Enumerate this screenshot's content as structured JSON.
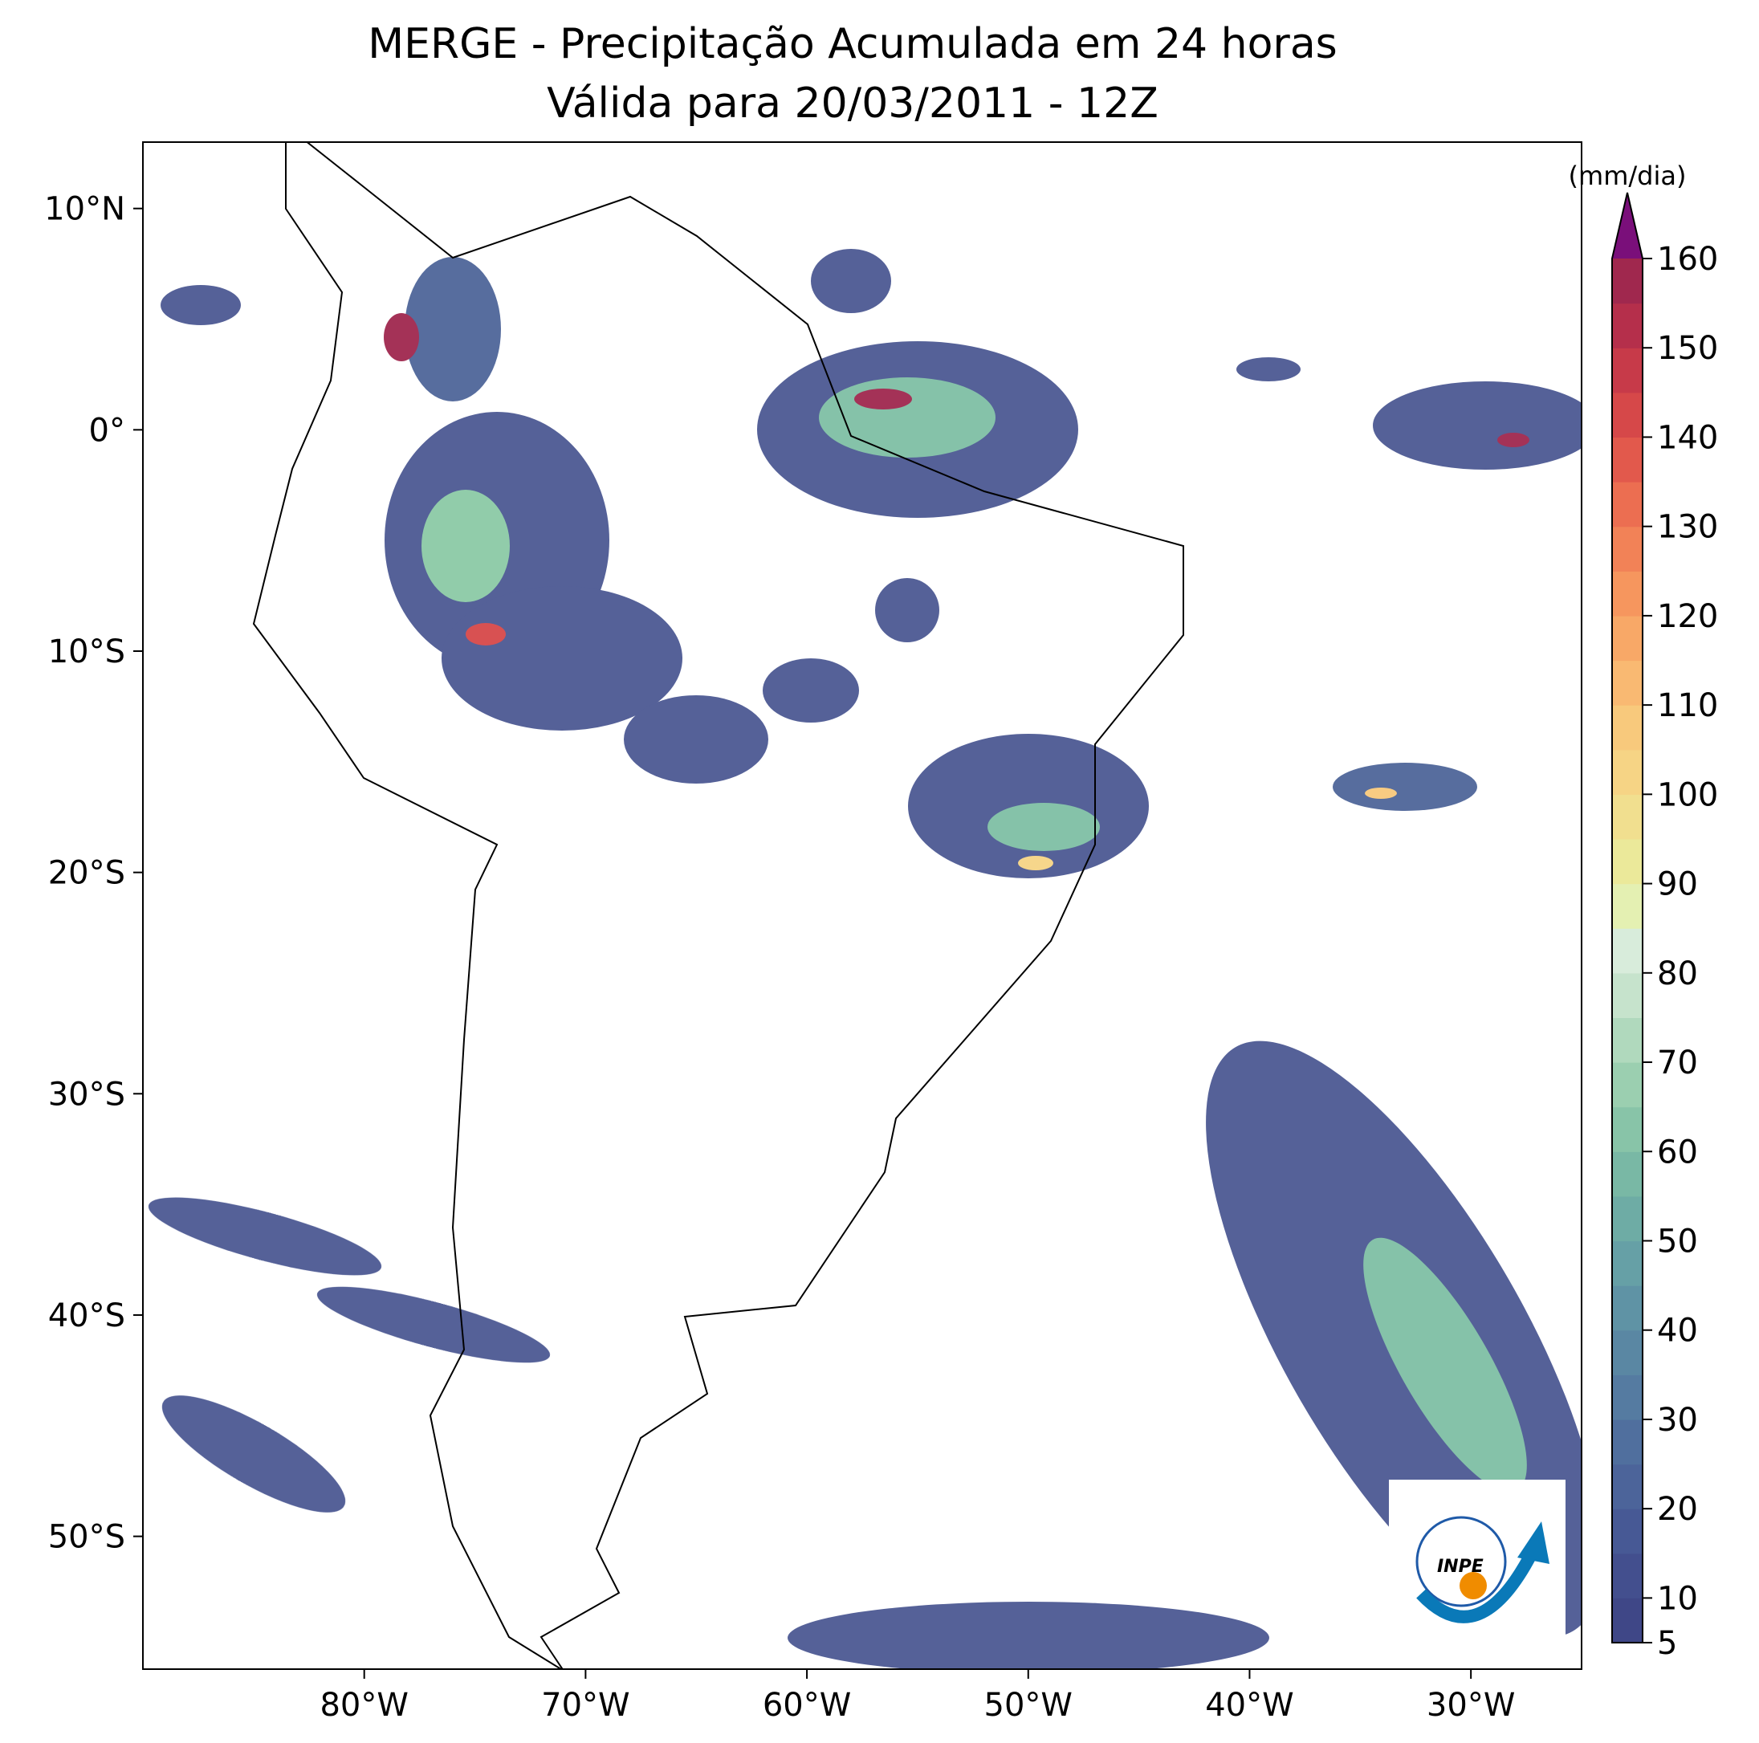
{
  "map": {
    "title": "MERGE - Precipitação Acumulada em 24 horas",
    "subtitle": "Válida para 20/03/2011 - 12Z",
    "xlim": [
      -90,
      -25
    ],
    "ylim": [
      -56,
      13
    ],
    "xticks": [
      {
        "value": -80,
        "label": "80°W"
      },
      {
        "value": -70,
        "label": "70°W"
      },
      {
        "value": -60,
        "label": "60°W"
      },
      {
        "value": -50,
        "label": "50°W"
      },
      {
        "value": -40,
        "label": "40°W"
      },
      {
        "value": -30,
        "label": "30°W"
      }
    ],
    "yticks": [
      {
        "value": 10,
        "label": "10°N"
      },
      {
        "value": 0,
        "label": "0°"
      },
      {
        "value": -10,
        "label": "10°S"
      },
      {
        "value": -20,
        "label": "20°S"
      },
      {
        "value": -30,
        "label": "30°S"
      },
      {
        "value": -40,
        "label": "40°S"
      },
      {
        "value": -50,
        "label": "50°S"
      }
    ],
    "colorbar": {
      "label": "(mm/dia)",
      "lim": [
        5,
        160
      ],
      "ticks": [
        5,
        10,
        20,
        30,
        40,
        50,
        60,
        70,
        80,
        90,
        100,
        110,
        120,
        130,
        140,
        150,
        160
      ],
      "colors": [
        "#3f4787",
        "#434f8e",
        "#475995",
        "#4c649a",
        "#506f9e",
        "#557ba1",
        "#5a87a3",
        "#5f93a5",
        "#66a0a6",
        "#6eaca5",
        "#79b8a5",
        "#88c4a8",
        "#9bcfb0",
        "#b0d9bd",
        "#c6e3cc",
        "#d8ecdb",
        "#e4f0b2",
        "#ebe99a",
        "#f1df8f",
        "#f6d485",
        "#f8c97c",
        "#f9b972",
        "#f8a867",
        "#f6965e",
        "#f28257",
        "#ec6e51",
        "#e2594c",
        "#d64849",
        "#c73a49",
        "#b52f4b",
        "#a0284e"
      ],
      "extend_color": "#7a0f7a"
    },
    "logo": "INPE"
  }
}
